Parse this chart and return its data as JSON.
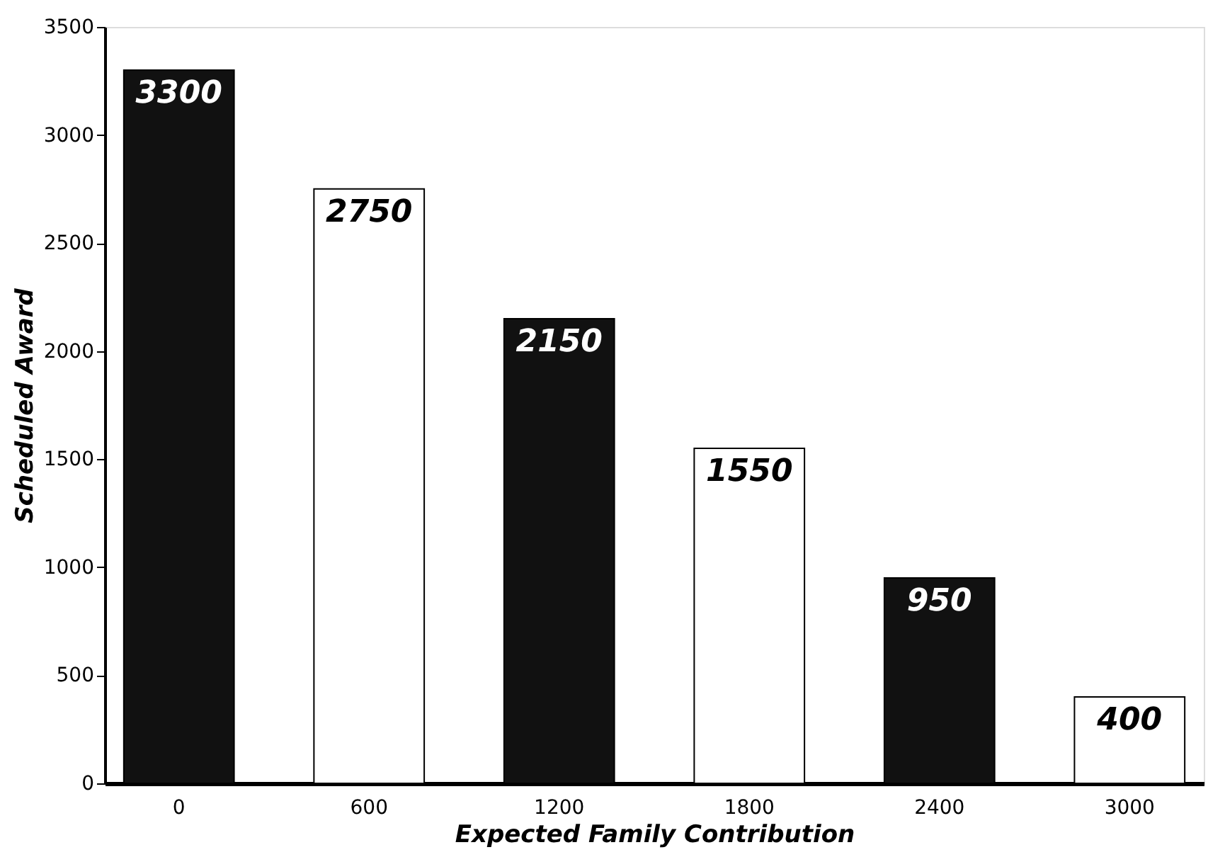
{
  "chart_data": {
    "type": "bar",
    "xlabel": "Expected Family Contribution",
    "ylabel": "Scheduled Award",
    "categories": [
      "0",
      "600",
      "1200",
      "1800",
      "2400",
      "3000"
    ],
    "values": [
      3300,
      2750,
      2150,
      1550,
      950,
      400
    ],
    "colors": [
      "#111111",
      "#ffffff",
      "#111111",
      "#ffffff",
      "#111111",
      "#ffffff"
    ],
    "ylim": [
      0,
      3500
    ],
    "yticks": [
      0,
      500,
      1000,
      1500,
      2000,
      2500,
      3000,
      3500
    ],
    "data_labels": true,
    "grid": false
  }
}
